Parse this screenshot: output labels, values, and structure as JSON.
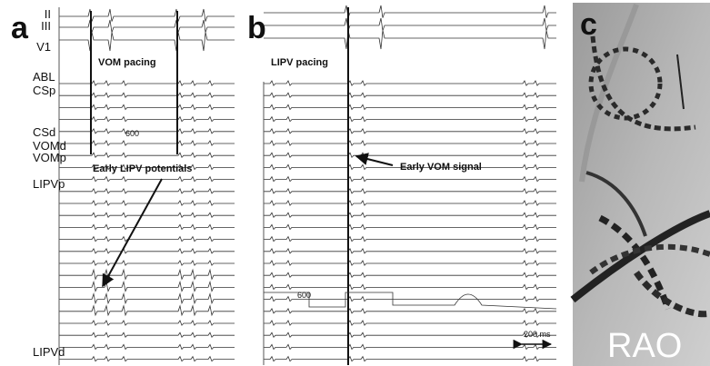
{
  "panels": [
    {
      "label": "a",
      "leads": [
        "II",
        "III",
        "V1",
        "ABL",
        "CSp",
        "CSd",
        "VOMd",
        "VOMp",
        "LIPVp",
        "LIPVd"
      ],
      "annotations": [
        "VOM pacing",
        "Early LIPV potentials"
      ],
      "cycle_length": "600"
    },
    {
      "label": "b",
      "annotations": [
        "LIPV pacing",
        "Early VOM signal"
      ],
      "cycle_length": "600",
      "scale_bar": "200 ms"
    },
    {
      "label": "c",
      "view": "RAO"
    }
  ]
}
